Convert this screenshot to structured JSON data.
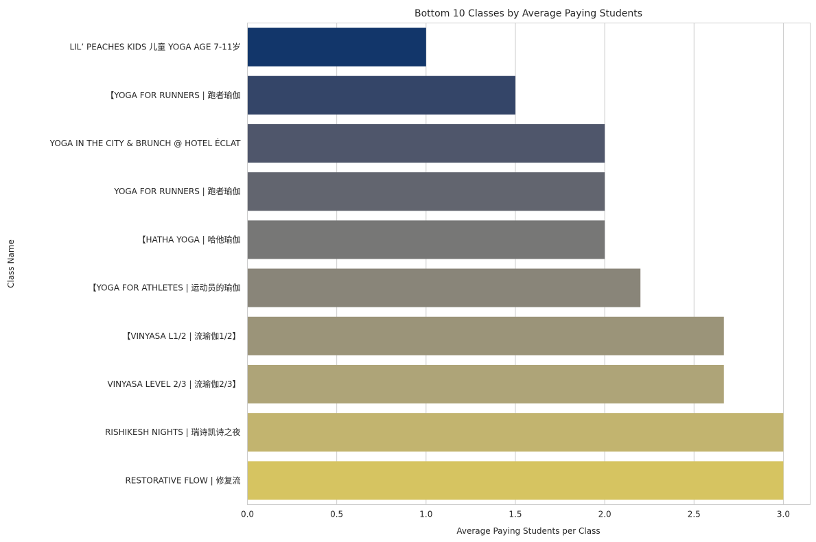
{
  "chart_data": {
    "type": "bar",
    "orientation": "horizontal",
    "title": "Bottom 10 Classes by Average Paying Students",
    "xlabel": "Average Paying Students per Class",
    "ylabel": "Class Name",
    "xlim": [
      0,
      3.15
    ],
    "x_ticks": [
      0.0,
      0.5,
      1.0,
      1.5,
      2.0,
      2.5,
      3.0
    ],
    "x_tick_labels": [
      "0.0",
      "0.5",
      "1.0",
      "1.5",
      "2.0",
      "2.5",
      "3.0"
    ],
    "grid": "vertical",
    "categories": [
      "LIL’ PEACHES KIDS 儿童 YOGA AGE 7-11岁",
      "【YOGA FOR RUNNERS | 跑者瑜伽",
      "YOGA IN THE CITY & BRUNCH @ HOTEL ÉCLAT",
      "YOGA FOR RUNNERS | 跑者瑜伽",
      "【HATHA YOGA | 哈他瑜伽",
      "【YOGA FOR ATHLETES | 运动员的瑜伽",
      "【VINYASA L1/2 | 流瑜伽1/2】",
      "VINYASA LEVEL 2/3 | 流瑜伽2/3】",
      "RISHIKESH NIGHTS | 瑞诗凯诗之夜",
      "RESTORATIVE FLOW | 修复流"
    ],
    "values": [
      1.0,
      1.5,
      2.0,
      2.0,
      2.0,
      2.2,
      2.667,
      2.667,
      3.0,
      3.0
    ],
    "colors": [
      "#12366a",
      "#344568",
      "#4f566b",
      "#62656f",
      "#777776",
      "#898579",
      "#9b9479",
      "#aea478",
      "#c2b46f",
      "#d6c461"
    ]
  }
}
